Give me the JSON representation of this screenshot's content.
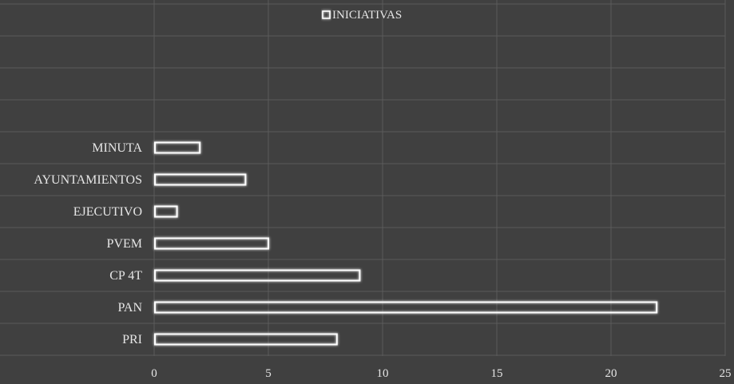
{
  "chart_data": {
    "type": "bar",
    "orientation": "horizontal",
    "categories": [
      "PRI",
      "PAN",
      "CP 4T",
      "PVEM",
      "EJECUTIVO",
      "AYUNTAMIENTOS",
      "MINUTA"
    ],
    "series": [
      {
        "name": "INICIATIVAS",
        "values": [
          8,
          22,
          9,
          5,
          1,
          4,
          2
        ]
      }
    ],
    "xlim": [
      0,
      25
    ],
    "x_ticks": [
      "0",
      "5",
      "10",
      "15",
      "20",
      "25"
    ],
    "grid": true,
    "legend_position": "top",
    "colors": {
      "background": "#404040",
      "grid": "#5a5a5a",
      "bar_outline": "#ffffff",
      "text": "#e6e6e6"
    }
  }
}
